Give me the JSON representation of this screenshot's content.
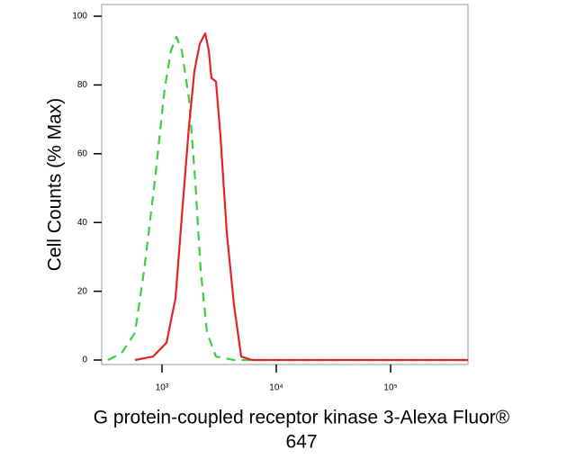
{
  "chart_data": {
    "type": "line",
    "log_x": true,
    "y_label": "Cell Counts (% Max)",
    "x_label": [
      "G protein-coupled receptor kinase 3-Alexa Fluor®",
      "647"
    ],
    "xlim": [
      297,
      475000
    ],
    "xticks": [
      {
        "value": 1000,
        "label": "10³"
      },
      {
        "value": 10000,
        "label": "10⁴"
      },
      {
        "value": 100000,
        "label": "10⁵"
      }
    ],
    "ylim": [
      -1.3,
      103.4
    ],
    "yticks": [
      0,
      20,
      40,
      60,
      80,
      100
    ],
    "series": [
      {
        "color": "#3ccf3c",
        "dash": true,
        "x": [
          337,
          443,
          581,
          697,
          865,
          1056,
          1200,
          1337,
          1490,
          1722,
          1955,
          2181,
          2477,
          2967,
          4266,
          475000
        ],
        "values": [
          0,
          2,
          8,
          26,
          52,
          79,
          90,
          94,
          90,
          76,
          52,
          26,
          8,
          1,
          0,
          0
        ]
      },
      {
        "color": "#e8202a",
        "dash": false,
        "x": [
          581,
          834,
          1095,
          1312,
          1517,
          1722,
          1921,
          2141,
          2387,
          2568,
          2708,
          2967,
          3250,
          3691,
          4266,
          4934,
          6124,
          475000
        ],
        "values": [
          0,
          1,
          5,
          18,
          45,
          68,
          84,
          92,
          95,
          90,
          82,
          81,
          65,
          37,
          16,
          1,
          0,
          0
        ]
      }
    ]
  }
}
